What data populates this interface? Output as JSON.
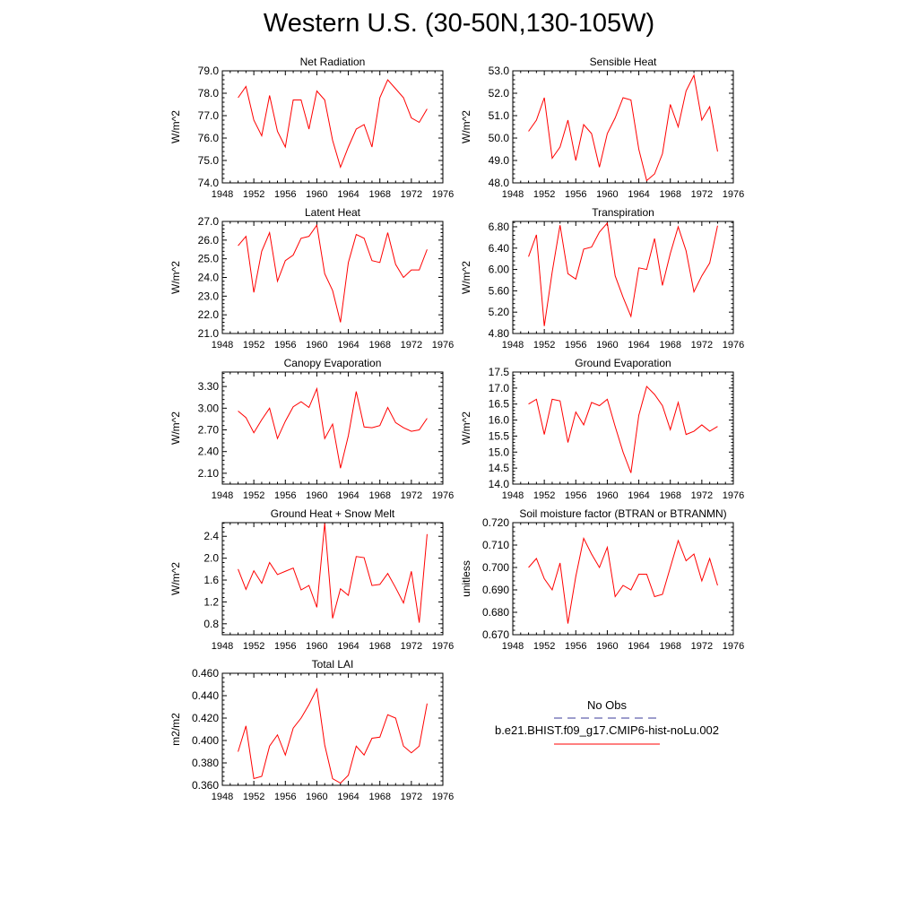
{
  "title": "Western U.S. (30-50N,130-105W)",
  "legend": {
    "header": "No Obs",
    "entries": [
      {
        "label": "",
        "color": "#3b3b9a",
        "dash": true
      },
      {
        "label": "b.e21.BHIST.f09_g17.CMIP6-hist-noLu.002",
        "color": "#ff0000",
        "dash": false
      }
    ]
  },
  "chart_data": [
    {
      "type": "line",
      "title": "Net Radiation",
      "ylabel": "W/m^2",
      "xlim": [
        1948,
        1976
      ],
      "xticks": [
        1948,
        1952,
        1956,
        1960,
        1964,
        1968,
        1972,
        1976
      ],
      "ylim": [
        74.0,
        79.0
      ],
      "yticks": [
        74.0,
        75.0,
        76.0,
        77.0,
        78.0,
        79.0
      ],
      "ydecimals": 1,
      "series": [
        {
          "color": "#ff0000",
          "x": [
            1950,
            1951,
            1952,
            1953,
            1954,
            1955,
            1956,
            1957,
            1958,
            1959,
            1960,
            1961,
            1962,
            1963,
            1964,
            1965,
            1966,
            1967,
            1968,
            1969,
            1970,
            1971,
            1972,
            1973,
            1974
          ],
          "values": [
            77.8,
            78.3,
            76.8,
            76.1,
            77.9,
            76.3,
            75.6,
            77.7,
            77.7,
            76.4,
            78.1,
            77.7,
            75.9,
            74.7,
            75.6,
            76.4,
            76.6,
            75.6,
            77.8,
            78.6,
            78.2,
            77.8,
            76.9,
            76.7,
            77.3
          ]
        }
      ]
    },
    {
      "type": "line",
      "title": "Sensible Heat",
      "ylabel": "W/m^2",
      "xlim": [
        1948,
        1976
      ],
      "xticks": [
        1948,
        1952,
        1956,
        1960,
        1964,
        1968,
        1972,
        1976
      ],
      "ylim": [
        48.0,
        53.0
      ],
      "yticks": [
        48.0,
        49.0,
        50.0,
        51.0,
        52.0,
        53.0
      ],
      "ydecimals": 1,
      "series": [
        {
          "color": "#ff0000",
          "x": [
            1950,
            1951,
            1952,
            1953,
            1954,
            1955,
            1956,
            1957,
            1958,
            1959,
            1960,
            1961,
            1962,
            1963,
            1964,
            1965,
            1966,
            1967,
            1968,
            1969,
            1970,
            1971,
            1972,
            1973,
            1974
          ],
          "values": [
            50.3,
            50.8,
            51.8,
            49.1,
            49.6,
            50.8,
            49.0,
            50.6,
            50.2,
            48.7,
            50.2,
            50.9,
            51.8,
            51.7,
            49.5,
            48.1,
            48.4,
            49.3,
            51.5,
            50.5,
            52.1,
            52.8,
            50.8,
            51.4,
            49.4
          ]
        }
      ]
    },
    {
      "type": "line",
      "title": "Latent Heat",
      "ylabel": "W/m^2",
      "xlim": [
        1948,
        1976
      ],
      "xticks": [
        1948,
        1952,
        1956,
        1960,
        1964,
        1968,
        1972,
        1976
      ],
      "ylim": [
        21.0,
        27.0
      ],
      "yticks": [
        21.0,
        22.0,
        23.0,
        24.0,
        25.0,
        26.0,
        27.0
      ],
      "ydecimals": 1,
      "series": [
        {
          "color": "#ff0000",
          "x": [
            1950,
            1951,
            1952,
            1953,
            1954,
            1955,
            1956,
            1957,
            1958,
            1959,
            1960,
            1961,
            1962,
            1963,
            1964,
            1965,
            1966,
            1967,
            1968,
            1969,
            1970,
            1971,
            1972,
            1973,
            1974
          ],
          "values": [
            25.7,
            26.2,
            23.2,
            25.4,
            26.4,
            23.8,
            24.9,
            25.2,
            26.1,
            26.2,
            26.8,
            24.2,
            23.3,
            21.6,
            24.8,
            26.3,
            26.1,
            24.9,
            24.8,
            26.4,
            24.7,
            24.0,
            24.4,
            24.4,
            25.5
          ]
        }
      ]
    },
    {
      "type": "line",
      "title": "Transpiration",
      "ylabel": "W/m^2",
      "xlim": [
        1948,
        1976
      ],
      "xticks": [
        1948,
        1952,
        1956,
        1960,
        1964,
        1968,
        1972,
        1976
      ],
      "ylim": [
        4.8,
        6.9
      ],
      "yticks": [
        4.8,
        5.2,
        5.6,
        6.0,
        6.4,
        6.8
      ],
      "ydecimals": 2,
      "series": [
        {
          "color": "#ff0000",
          "x": [
            1950,
            1951,
            1952,
            1953,
            1954,
            1955,
            1956,
            1957,
            1958,
            1959,
            1960,
            1961,
            1962,
            1963,
            1964,
            1965,
            1966,
            1967,
            1968,
            1969,
            1970,
            1971,
            1972,
            1973,
            1974
          ],
          "values": [
            6.24,
            6.65,
            4.94,
            5.95,
            6.83,
            5.92,
            5.82,
            6.38,
            6.42,
            6.7,
            6.87,
            5.88,
            5.48,
            5.12,
            6.03,
            6.0,
            6.58,
            5.7,
            6.3,
            6.8,
            6.35,
            5.58,
            5.88,
            6.12,
            6.82
          ]
        }
      ]
    },
    {
      "type": "line",
      "title": "Canopy Evaporation",
      "ylabel": "W/m^2",
      "xlim": [
        1948,
        1976
      ],
      "xticks": [
        1948,
        1952,
        1956,
        1960,
        1964,
        1968,
        1972,
        1976
      ],
      "ylim": [
        1.95,
        3.5
      ],
      "yticks": [
        2.1,
        2.4,
        2.7,
        3.0,
        3.3
      ],
      "ydecimals": 2,
      "series": [
        {
          "color": "#ff0000",
          "x": [
            1950,
            1951,
            1952,
            1953,
            1954,
            1955,
            1956,
            1957,
            1958,
            1959,
            1960,
            1961,
            1962,
            1963,
            1964,
            1965,
            1966,
            1967,
            1968,
            1969,
            1970,
            1971,
            1972,
            1973,
            1974
          ],
          "values": [
            2.96,
            2.87,
            2.66,
            2.84,
            3.0,
            2.58,
            2.82,
            3.02,
            3.09,
            3.01,
            3.27,
            2.58,
            2.78,
            2.17,
            2.62,
            3.23,
            2.74,
            2.73,
            2.76,
            3.01,
            2.8,
            2.73,
            2.68,
            2.7,
            2.86
          ]
        }
      ]
    },
    {
      "type": "line",
      "title": "Ground Evaporation",
      "ylabel": "W/m^2",
      "xlim": [
        1948,
        1976
      ],
      "xticks": [
        1948,
        1952,
        1956,
        1960,
        1964,
        1968,
        1972,
        1976
      ],
      "ylim": [
        14.0,
        17.5
      ],
      "yticks": [
        14.0,
        14.5,
        15.0,
        15.5,
        16.0,
        16.5,
        17.0,
        17.5
      ],
      "ydecimals": 1,
      "series": [
        {
          "color": "#ff0000",
          "x": [
            1950,
            1951,
            1952,
            1953,
            1954,
            1955,
            1956,
            1957,
            1958,
            1959,
            1960,
            1961,
            1962,
            1963,
            1964,
            1965,
            1966,
            1967,
            1968,
            1969,
            1970,
            1971,
            1972,
            1973,
            1974
          ],
          "values": [
            16.5,
            16.65,
            15.55,
            16.65,
            16.6,
            15.3,
            16.25,
            15.85,
            16.55,
            16.45,
            16.65,
            15.8,
            15.0,
            14.35,
            16.15,
            17.05,
            16.8,
            16.45,
            15.7,
            16.55,
            15.55,
            15.65,
            15.85,
            15.65,
            15.8
          ]
        }
      ]
    },
    {
      "type": "line",
      "title": "Ground Heat + Snow Melt",
      "ylabel": "W/m^2",
      "xlim": [
        1948,
        1976
      ],
      "xticks": [
        1948,
        1952,
        1956,
        1960,
        1964,
        1968,
        1972,
        1976
      ],
      "ylim": [
        0.6,
        2.65
      ],
      "yticks": [
        0.8,
        1.2,
        1.6,
        2.0,
        2.4
      ],
      "ydecimals": 1,
      "series": [
        {
          "color": "#ff0000",
          "x": [
            1950,
            1951,
            1952,
            1953,
            1954,
            1955,
            1956,
            1957,
            1958,
            1959,
            1960,
            1961,
            1962,
            1963,
            1964,
            1965,
            1966,
            1967,
            1968,
            1969,
            1970,
            1971,
            1972,
            1973,
            1974
          ],
          "values": [
            1.8,
            1.43,
            1.77,
            1.54,
            1.92,
            1.7,
            1.76,
            1.82,
            1.42,
            1.5,
            1.1,
            2.64,
            0.9,
            1.44,
            1.32,
            2.03,
            2.01,
            1.5,
            1.52,
            1.72,
            1.46,
            1.18,
            1.76,
            0.82,
            2.44
          ]
        }
      ]
    },
    {
      "type": "line",
      "title": "Soil moisture factor (BTRAN or BTRANMN)",
      "ylabel": "unitless",
      "xlim": [
        1948,
        1976
      ],
      "xticks": [
        1948,
        1952,
        1956,
        1960,
        1964,
        1968,
        1972,
        1976
      ],
      "ylim": [
        0.67,
        0.72
      ],
      "yticks": [
        0.67,
        0.68,
        0.69,
        0.7,
        0.71,
        0.72
      ],
      "ydecimals": 3,
      "series": [
        {
          "color": "#ff0000",
          "x": [
            1950,
            1951,
            1952,
            1953,
            1954,
            1955,
            1956,
            1957,
            1958,
            1959,
            1960,
            1961,
            1962,
            1963,
            1964,
            1965,
            1966,
            1967,
            1968,
            1969,
            1970,
            1971,
            1972,
            1973,
            1974
          ],
          "values": [
            0.7,
            0.704,
            0.695,
            0.69,
            0.702,
            0.675,
            0.696,
            0.713,
            0.706,
            0.7,
            0.709,
            0.687,
            0.692,
            0.69,
            0.697,
            0.697,
            0.687,
            0.688,
            0.7,
            0.712,
            0.703,
            0.706,
            0.694,
            0.704,
            0.692
          ]
        }
      ]
    },
    {
      "type": "line",
      "title": "Total LAI",
      "ylabel": "m2/m2",
      "xlim": [
        1948,
        1976
      ],
      "xticks": [
        1948,
        1952,
        1956,
        1960,
        1964,
        1968,
        1972,
        1976
      ],
      "ylim": [
        0.36,
        0.46
      ],
      "yticks": [
        0.36,
        0.38,
        0.4,
        0.42,
        0.44,
        0.46
      ],
      "ydecimals": 3,
      "series": [
        {
          "color": "#ff0000",
          "x": [
            1950,
            1951,
            1952,
            1953,
            1954,
            1955,
            1956,
            1957,
            1958,
            1959,
            1960,
            1961,
            1962,
            1963,
            1964,
            1965,
            1966,
            1967,
            1968,
            1969,
            1970,
            1971,
            1972,
            1973,
            1974
          ],
          "values": [
            0.39,
            0.413,
            0.366,
            0.368,
            0.395,
            0.405,
            0.387,
            0.411,
            0.42,
            0.432,
            0.446,
            0.396,
            0.366,
            0.362,
            0.369,
            0.395,
            0.387,
            0.402,
            0.403,
            0.423,
            0.42,
            0.395,
            0.389,
            0.395,
            0.433
          ]
        }
      ]
    }
  ]
}
